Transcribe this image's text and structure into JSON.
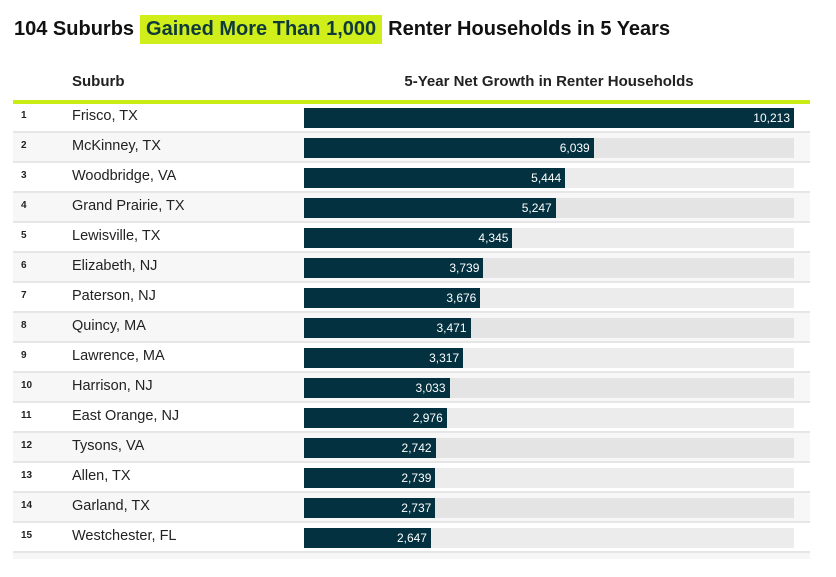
{
  "title": {
    "prefix": "104 Suburbs",
    "highlight": "Gained More Than 1,000",
    "suffix": "Renter Households in 5 Years"
  },
  "colors": {
    "bar": "#033140",
    "highlight": "#d0ef1a",
    "accent_line": "#c8ec14"
  },
  "header": {
    "suburb": "Suburb",
    "growth": "5-Year Net Growth in Renter Households"
  },
  "chart_data": {
    "type": "bar",
    "orientation": "horizontal",
    "title": "104 Suburbs Gained More Than 1,000 Renter Households in 5 Years",
    "xlabel": "5-Year Net Growth in Renter Households",
    "ylabel": "Suburb",
    "xlim": [
      0,
      10213
    ],
    "ranks": [
      "1",
      "2",
      "3",
      "4",
      "5",
      "6",
      "7",
      "8",
      "9",
      "10",
      "11",
      "12",
      "13",
      "14",
      "15"
    ],
    "categories": [
      "Frisco, TX",
      "McKinney, TX",
      "Woodbridge, VA",
      "Grand Prairie, TX",
      "Lewisville, TX",
      "Elizabeth, NJ",
      "Paterson, NJ",
      "Quincy, MA",
      "Lawrence, MA",
      "Harrison, NJ",
      "East Orange, NJ",
      "Tysons, VA",
      "Allen, TX",
      "Garland, TX",
      "Westchester, FL"
    ],
    "values": [
      10213,
      6039,
      5444,
      5247,
      4345,
      3739,
      3676,
      3471,
      3317,
      3033,
      2976,
      2742,
      2739,
      2737,
      2647
    ],
    "labels": [
      "10,213",
      "6,039",
      "5,444",
      "5,247",
      "4,345",
      "3,739",
      "3,676",
      "3,471",
      "3,317",
      "3,033",
      "2,976",
      "2,742",
      "2,739",
      "2,737",
      "2,647"
    ]
  }
}
